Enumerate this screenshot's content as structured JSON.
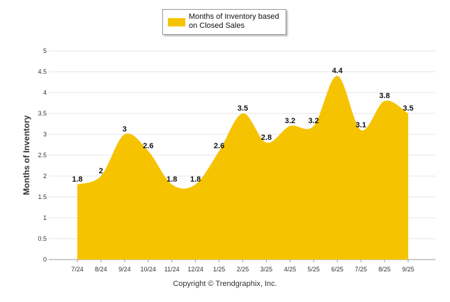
{
  "chart_data": {
    "type": "area",
    "categories": [
      "7/24",
      "8/24",
      "9/24",
      "10/24",
      "11/24",
      "12/24",
      "1/25",
      "2/25",
      "3/25",
      "4/25",
      "5/25",
      "6/25",
      "7/25",
      "8/25",
      "9/25"
    ],
    "series": [
      {
        "name": "Months of Inventory based on Closed Sales",
        "values": [
          1.8,
          2,
          3,
          2.6,
          1.8,
          1.8,
          2.6,
          3.5,
          2.8,
          3.2,
          3.2,
          4.4,
          3.1,
          3.8,
          3.5
        ],
        "value_labels": [
          "1.8",
          "2",
          "3",
          "2.6",
          "1.8",
          "1.8",
          "2.6",
          "3.5",
          "2.8",
          "3.2",
          "3.2",
          "4.4",
          "3.1",
          "3.8",
          "3.5"
        ],
        "color": "#f6c300"
      }
    ],
    "yticks": [
      "0",
      "0.5",
      "1",
      "1.5",
      "2",
      "2.5",
      "3",
      "3.5",
      "4",
      "4.5",
      "5"
    ],
    "ylim": [
      0,
      5
    ],
    "ylabel": "Months of Inventory",
    "xlabel": "",
    "grid": true,
    "legend_position": "top-center"
  },
  "legend": {
    "label": "Months of Inventory based on Closed Sales"
  },
  "footer": {
    "copyright": "Copyright © Trendgraphix, Inc."
  }
}
